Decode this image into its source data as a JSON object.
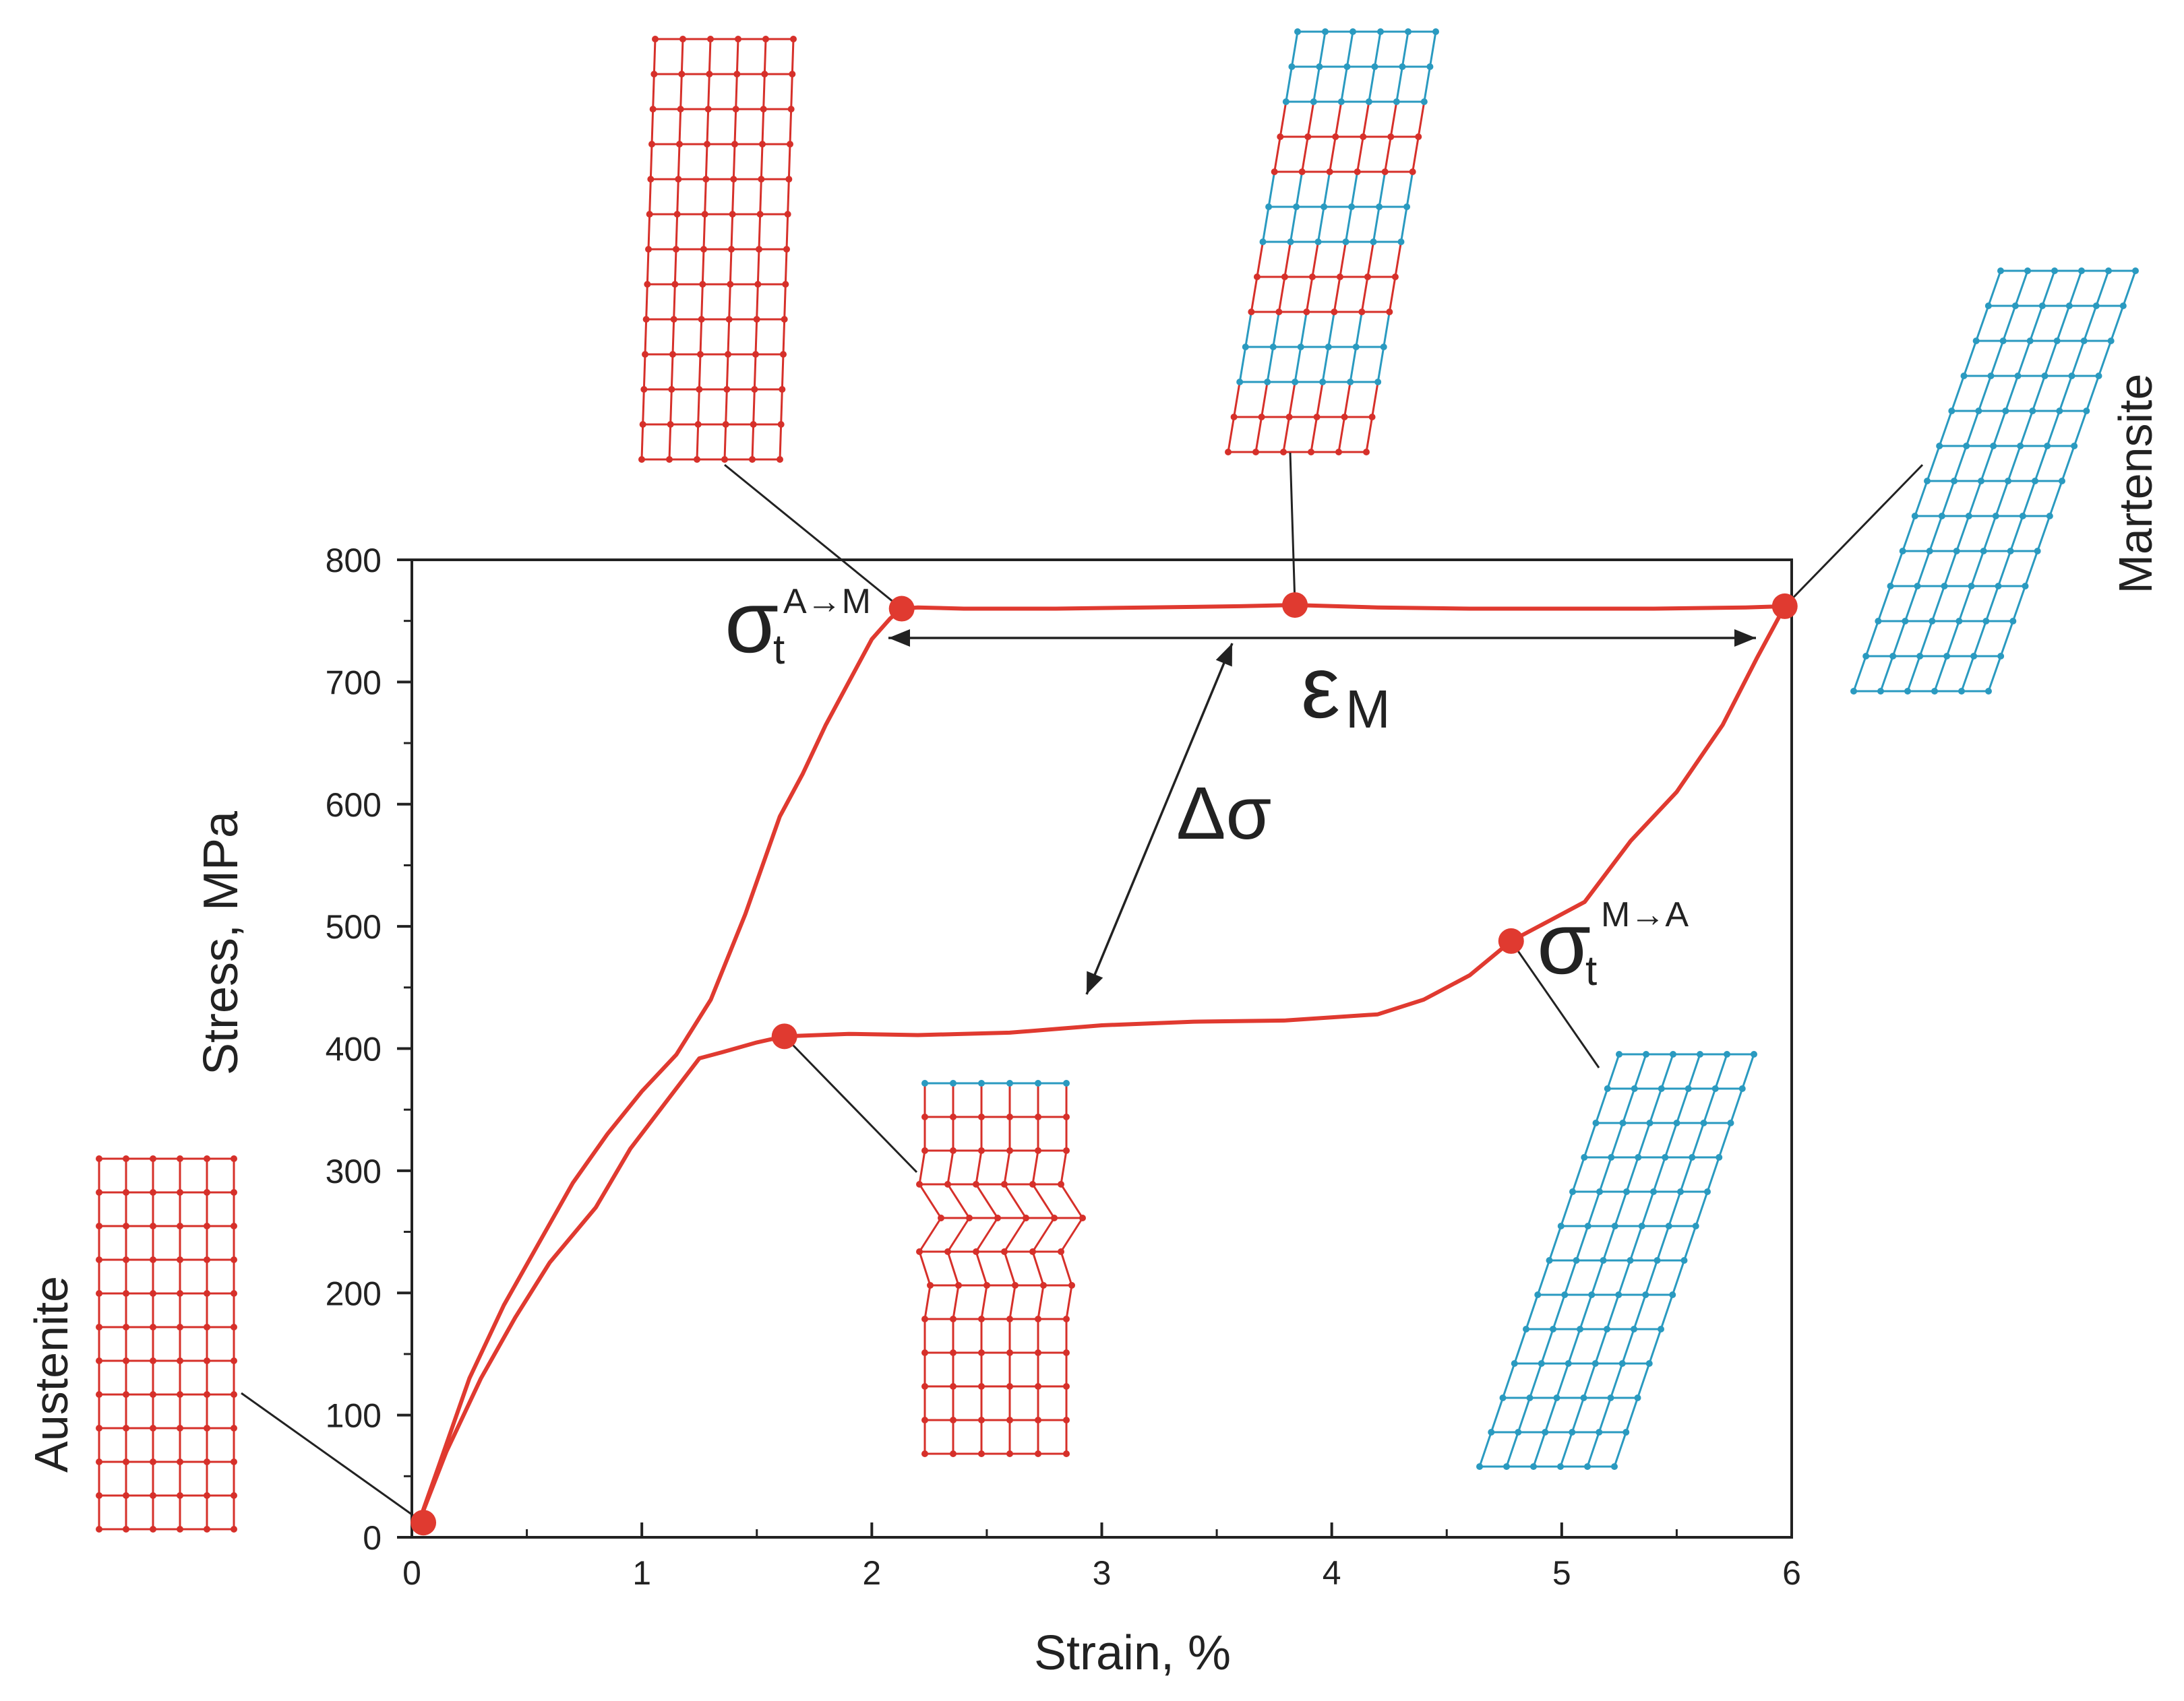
{
  "chart_data": {
    "type": "line",
    "title": "",
    "xlabel": "Strain, %",
    "ylabel": "Stress, MPa",
    "xlim": [
      0,
      6
    ],
    "ylim": [
      0,
      800
    ],
    "x_ticks": [
      0,
      1,
      2,
      3,
      4,
      5,
      6
    ],
    "y_ticks": [
      0,
      100,
      200,
      300,
      400,
      500,
      600,
      700,
      800
    ],
    "series": [
      {
        "name": "loading",
        "x": [
          0.03,
          0.12,
          0.25,
          0.4,
          0.55,
          0.7,
          0.85,
          1.0,
          1.15,
          1.3,
          1.45,
          1.6,
          1.7,
          1.8,
          1.9,
          2.0,
          2.08,
          2.13,
          2.2,
          2.4,
          2.8,
          3.2,
          3.6,
          3.84,
          4.2,
          4.6,
          5.0,
          5.4,
          5.8,
          5.97
        ],
        "y": [
          12,
          60,
          130,
          190,
          240,
          290,
          330,
          365,
          395,
          440,
          510,
          590,
          625,
          665,
          700,
          735,
          752,
          760,
          761,
          760,
          760,
          761,
          762,
          763,
          761,
          760,
          760,
          760,
          761,
          762
        ]
      },
      {
        "name": "unloading",
        "x": [
          5.97,
          5.85,
          5.7,
          5.5,
          5.3,
          5.1,
          4.95,
          4.78,
          4.6,
          4.4,
          4.2,
          3.8,
          3.4,
          3.0,
          2.6,
          2.2,
          1.9,
          1.62,
          1.5,
          1.35,
          1.25,
          1.1,
          0.95,
          0.8,
          0.6,
          0.45,
          0.3,
          0.15,
          0.03
        ],
        "y": [
          762,
          720,
          665,
          610,
          570,
          520,
          505,
          488,
          460,
          440,
          428,
          423,
          422,
          419,
          413,
          411,
          412,
          410,
          405,
          397,
          392,
          355,
          318,
          270,
          225,
          180,
          130,
          70,
          12
        ]
      }
    ],
    "points": [
      {
        "name": "origin",
        "x": 0.05,
        "y": 12
      },
      {
        "name": "sigma_t_A_to_M",
        "x": 2.13,
        "y": 760
      },
      {
        "name": "mid_plateau",
        "x": 3.84,
        "y": 763
      },
      {
        "name": "max_strain",
        "x": 5.97,
        "y": 762
      },
      {
        "name": "sigma_t_M_to_A",
        "x": 4.78,
        "y": 488
      },
      {
        "name": "lower_plateau_start",
        "x": 1.62,
        "y": 410
      }
    ],
    "annotations": {
      "sigma_am_symbol": "σ",
      "sigma_am_sub": "t",
      "sigma_am_sup": "A→M",
      "sigma_ma_symbol": "σ",
      "sigma_ma_sub": "t",
      "sigma_ma_sup": "M→A",
      "epsilon_symbol": "ε",
      "epsilon_sub": "M",
      "delta_sigma": "Δσ"
    },
    "phase_labels": {
      "austenite": "Austenite",
      "martensite": "Martensite"
    },
    "colors": {
      "curve": "#e03a30",
      "austenite_lattice": "#d6302a",
      "martensite_lattice": "#2a9ac0",
      "axis": "#222222"
    }
  }
}
